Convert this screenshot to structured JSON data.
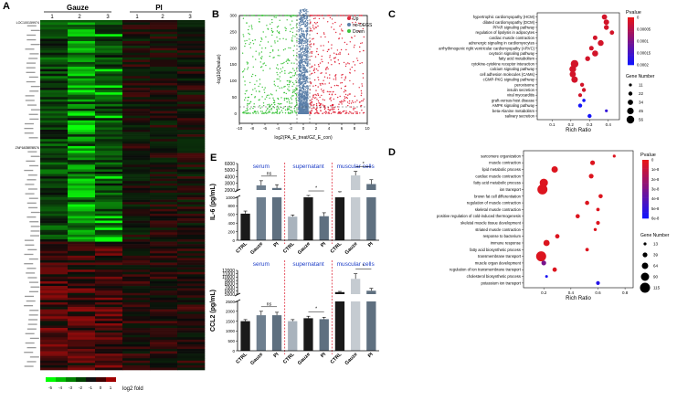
{
  "panels": {
    "A": {
      "letter": "A",
      "groups": [
        "Gauze",
        "PI"
      ],
      "lanes": [
        "1",
        "2",
        "3",
        "1",
        "2",
        "3"
      ],
      "colorbar_ticks": [
        "-5",
        "-4",
        "-3",
        "-2",
        "-1",
        "0",
        "1"
      ],
      "colorbar_label": "log2 fold",
      "top_gene": "LOC100159974",
      "mid_gene": "ZNF683BCB476"
    },
    "B": {
      "letter": "B",
      "ylabel": "-log10(Qvalue)",
      "xlabel": "log2(PA_E_treat/GZ_E_con)",
      "x_ticks": [
        "-10",
        "-8",
        "-6",
        "-4",
        "-2",
        "0",
        "2",
        "4",
        "6",
        "8",
        "10"
      ],
      "y_ticks": [
        "0",
        "50",
        "100",
        "150",
        "200",
        "250",
        "300"
      ],
      "legend": [
        "Up",
        "no-DEGS",
        "Down"
      ],
      "colors": {
        "up": "#e0283c",
        "nodeg": "#5b7fa8",
        "down": "#3ec43e"
      }
    },
    "C": {
      "letter": "C",
      "xlabel": "Rich Ratio",
      "x_ticks": [
        "0.1",
        "0.2",
        "0.3",
        "0.4"
      ],
      "pvalue_title": "Pvalue",
      "pvalue_ticks": [
        "0",
        "0.00005",
        "0.0001",
        "0.00015",
        "0.0002"
      ],
      "gene_title": "Gene Number",
      "gene_sizes": [
        "11",
        "22",
        "34",
        "45",
        "56"
      ],
      "terms": [
        "hypertrophic cardiomyopathy (HCM)",
        "dilated cardiomyopathy (DCM)",
        "PPAR signaling pathway",
        "regulation of lipolysis in adipocytes",
        "cardiac muscle contraction",
        "adrenergic signaling in cardiomyocytes",
        "arrhythmogenic right ventricular cardiomyopathy (ARVC)",
        "oxytocin signaling pathway",
        "fatty acid metabolism",
        "cytokine-cytokine receptor interaction",
        "calcium signaling pathway",
        "cell adhesion molecules (CAMs)",
        "cGMP-PKG signaling pathway",
        "peroxisome",
        "insulin secretion",
        "viral myocarditis",
        "graft-versus-host disease",
        "AMPK signaling pathway",
        "beta-Alanine metabolism",
        "salivary secretion"
      ],
      "rich_ratio": [
        0.38,
        0.39,
        0.39,
        0.42,
        0.33,
        0.36,
        0.31,
        0.33,
        0.29,
        0.22,
        0.21,
        0.21,
        0.22,
        0.26,
        0.27,
        0.25,
        0.27,
        0.25,
        0.39,
        0.3
      ],
      "gene_number": [
        34,
        36,
        30,
        25,
        27,
        38,
        26,
        40,
        30,
        56,
        48,
        42,
        44,
        22,
        22,
        20,
        14,
        22,
        11,
        22
      ],
      "pvalue": [
        1e-05,
        1e-05,
        1e-05,
        1e-05,
        1e-05,
        1e-05,
        1e-05,
        1e-05,
        1e-05,
        1e-05,
        1e-05,
        1e-05,
        1e-05,
        1e-05,
        1e-05,
        1e-05,
        0.0002,
        0.0002,
        0.00017,
        0.0002
      ]
    },
    "D": {
      "letter": "D",
      "xlabel": "Rich Ratio",
      "x_ticks": [
        "0.2",
        "0.4",
        "0.6",
        "0.8"
      ],
      "pvalue_title": "Pvalue",
      "pvalue_ticks": [
        "0",
        "1e-8",
        "2e-8",
        "3e-8",
        "4e-8",
        "5e-8",
        "6e-8"
      ],
      "gene_title": "Gene Number",
      "gene_sizes": [
        "13",
        "39",
        "64",
        "90",
        "115"
      ],
      "terms": [
        "sarcomere organization",
        "muscle contraction",
        "lipid metabolic process",
        "cardiac muscle contraction",
        "fatty acid metabolic process",
        "ion transport",
        "brown fat cell differentiation",
        "regulation of muscle contraction",
        "skeletal muscle contraction",
        "positive regulation of cold-induced thermogenesis",
        "skeletal muscle tissue development",
        "striated muscle contraction",
        "response to bacterium",
        "immune response",
        "fatty acid biosynthetic process",
        "transmembrane transport",
        "muscle organ development",
        "regulation of ion transmembrane transport",
        "cholesterol biosynthetic process",
        "potassium ion transport"
      ],
      "rich_ratio": [
        0.72,
        0.56,
        0.28,
        0.55,
        0.2,
        0.19,
        0.62,
        0.52,
        0.6,
        0.45,
        0.6,
        0.58,
        0.3,
        0.22,
        0.52,
        0.18,
        0.2,
        0.28,
        0.22,
        0.6
      ],
      "gene_number": [
        13,
        39,
        64,
        39,
        90,
        115,
        30,
        30,
        20,
        30,
        25,
        15,
        35,
        60,
        20,
        115,
        39,
        35,
        10,
        25
      ],
      "pvalue": [
        0,
        0,
        0,
        0,
        0,
        0,
        0,
        0,
        0,
        0,
        0,
        0,
        0,
        0,
        0,
        0,
        3e-08,
        0,
        5.8e-08,
        5.5e-08
      ]
    },
    "E": {
      "letter": "E",
      "groups": [
        "serum",
        "supernatant",
        "muscular cells"
      ],
      "categories": [
        "CTRL",
        "Gauze",
        "PI",
        "CTRL",
        "Gauze",
        "PI",
        "CTRL",
        "Gauze",
        "PI"
      ],
      "bar_colors": [
        "#1a1a1a",
        "#6e7f8f",
        "#5f7080",
        "#a9b3bd",
        "#1a1a1a",
        "#5f7080",
        "#1a1a1a",
        "#c5cbd1",
        "#5f7080"
      ],
      "il6": {
        "ylabel": "IL-6 (pg/mL)",
        "y_ticks_top": [
          "2000",
          "3000",
          "4000",
          "5000",
          "6000"
        ],
        "y_ticks_bottom": [
          "0",
          "200",
          "400",
          "600",
          "800",
          "1000"
        ],
        "values": [
          620,
          2700,
          2300,
          550,
          1050,
          560,
          1620,
          4200,
          2900
        ],
        "errors": [
          60,
          700,
          500,
          40,
          120,
          80,
          120,
          600,
          650
        ],
        "sig": [
          "ns",
          "*",
          "*"
        ]
      },
      "ccl2": {
        "ylabel": "CCL2 (pg/mL)",
        "y_ticks_top": [
          "5000",
          "6000",
          "7000",
          "8000",
          "9000",
          "10000",
          "11000",
          "12000"
        ],
        "y_ticks_bottom": [
          "0",
          "500",
          "1000",
          "1500",
          "2000",
          "2500"
        ],
        "values": [
          1500,
          1800,
          1800,
          1500,
          1650,
          1600,
          5600,
          9500,
          6000
        ],
        "errors": [
          80,
          200,
          150,
          80,
          100,
          100,
          200,
          1500,
          700
        ],
        "sig": [
          "ns",
          "*",
          "*"
        ]
      }
    }
  }
}
